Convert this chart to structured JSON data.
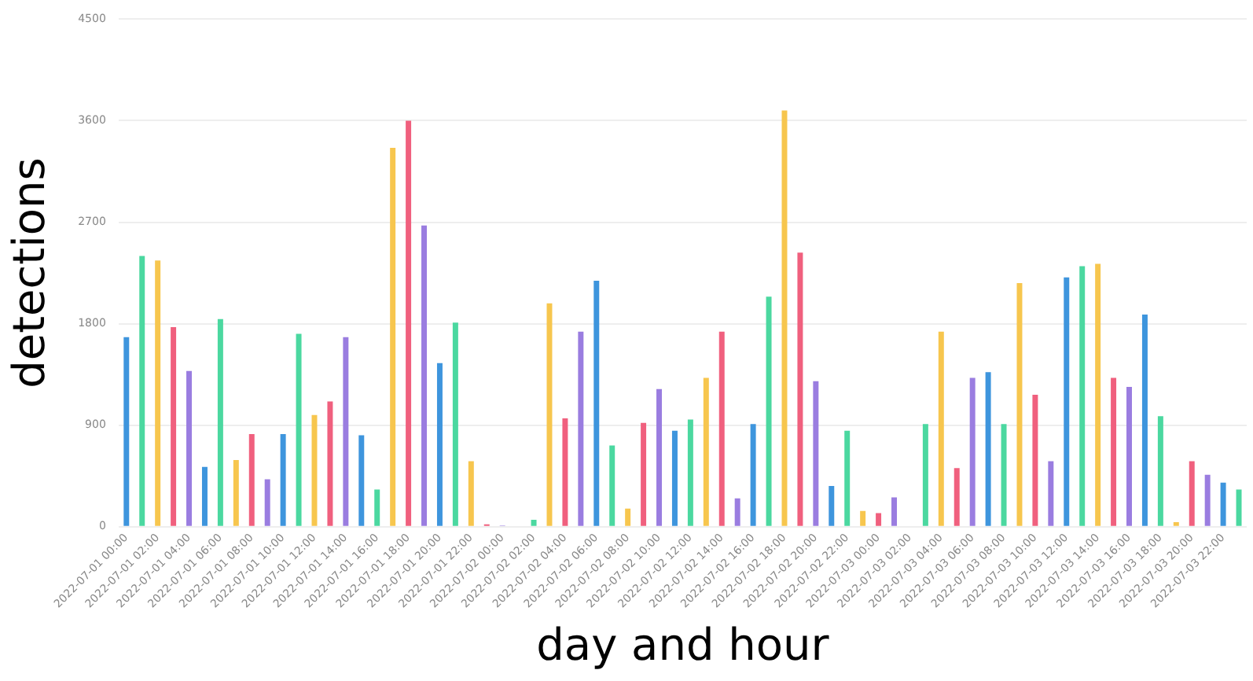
{
  "chart_data": {
    "type": "bar",
    "xlabel": "day and hour",
    "ylabel": "detections",
    "categories": [
      "2022-07-01 00:00",
      null,
      "2022-07-01 02:00",
      null,
      "2022-07-01 04:00",
      null,
      "2022-07-01 06:00",
      null,
      "2022-07-01 08:00",
      null,
      "2022-07-01 10:00",
      null,
      "2022-07-01 12:00",
      null,
      "2022-07-01 14:00",
      null,
      "2022-07-01 16:00",
      null,
      "2022-07-01 18:00",
      null,
      "2022-07-01 20:00",
      null,
      "2022-07-01 22:00",
      null,
      "2022-07-02 00:00",
      null,
      "2022-07-02 02:00",
      null,
      "2022-07-02 04:00",
      null,
      "2022-07-02 06:00",
      null,
      "2022-07-02 08:00",
      null,
      "2022-07-02 10:00",
      null,
      "2022-07-02 12:00",
      null,
      "2022-07-02 14:00",
      null,
      "2022-07-02 16:00",
      null,
      "2022-07-02 18:00",
      null,
      "2022-07-02 20:00",
      null,
      "2022-07-02 22:00",
      null,
      "2022-07-03 00:00",
      null,
      "2022-07-03 02:00",
      null,
      "2022-07-03 04:00",
      null,
      "2022-07-03 06:00",
      null,
      "2022-07-03 08:00",
      null,
      "2022-07-03 10:00",
      null,
      "2022-07-03 12:00",
      null,
      "2022-07-03 14:00",
      null,
      "2022-07-03 16:00",
      null,
      "2022-07-03 18:00",
      null,
      "2022-07-03 20:00",
      null,
      "2022-07-03 22:00",
      null
    ],
    "values": [
      1680,
      2400,
      2360,
      1770,
      1380,
      530,
      1840,
      590,
      820,
      420,
      820,
      1710,
      990,
      1110,
      1680,
      810,
      330,
      3360,
      3600,
      2670,
      1450,
      1810,
      580,
      20,
      10,
      0,
      60,
      1980,
      960,
      1730,
      2180,
      720,
      160,
      920,
      1220,
      850,
      950,
      1320,
      1730,
      250,
      910,
      2040,
      3690,
      2430,
      1290,
      360,
      850,
      140,
      120,
      260,
      0,
      910,
      1730,
      520,
      1320,
      1370,
      910,
      2160,
      1170,
      580,
      2210,
      2310,
      2330,
      1320,
      1240,
      1880,
      980,
      40,
      580,
      460,
      390,
      330
    ],
    "colors": [
      "#3e95dd",
      "#4bd8a0",
      "#f7c64e",
      "#f0607e",
      "#9a7de0",
      "#3e95dd",
      "#4bd8a0",
      "#f7c64e",
      "#f0607e",
      "#9a7de0",
      "#3e95dd",
      "#4bd8a0",
      "#f7c64e",
      "#f0607e",
      "#9a7de0",
      "#3e95dd",
      "#4bd8a0",
      "#f7c64e",
      "#f0607e",
      "#9a7de0",
      "#3e95dd",
      "#4bd8a0",
      "#f7c64e",
      "#f0607e",
      "#9a7de0",
      "#3e95dd",
      "#4bd8a0",
      "#f7c64e",
      "#f0607e",
      "#9a7de0",
      "#3e95dd",
      "#4bd8a0",
      "#f7c64e",
      "#f0607e",
      "#9a7de0",
      "#3e95dd",
      "#4bd8a0",
      "#f7c64e",
      "#f0607e",
      "#9a7de0",
      "#3e95dd",
      "#4bd8a0",
      "#f7c64e",
      "#f0607e",
      "#9a7de0",
      "#3e95dd",
      "#4bd8a0",
      "#f7c64e",
      "#f0607e",
      "#9a7de0",
      "#3e95dd",
      "#4bd8a0",
      "#f7c64e",
      "#f0607e",
      "#9a7de0",
      "#3e95dd",
      "#4bd8a0",
      "#f7c64e",
      "#f0607e",
      "#9a7de0",
      "#3e95dd",
      "#4bd8a0",
      "#f7c64e",
      "#f0607e",
      "#9a7de0",
      "#3e95dd",
      "#4bd8a0",
      "#f7c64e",
      "#f0607e",
      "#9a7de0",
      "#3e95dd",
      "#4bd8a0"
    ],
    "ylim": [
      0,
      4500
    ],
    "yticks": [
      0,
      900,
      1800,
      2700,
      3600,
      4500
    ],
    "grid": "y",
    "legend": false
  }
}
